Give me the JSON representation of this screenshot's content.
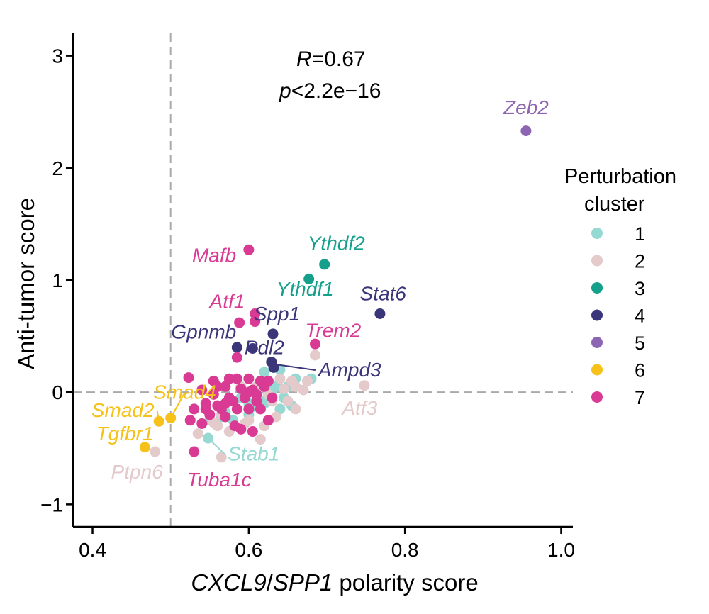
{
  "chart_data": {
    "type": "scatter",
    "title": "",
    "xlabel_parts": [
      {
        "text": "CXCL9",
        "italic": true
      },
      {
        "text": "/",
        "italic": false
      },
      {
        "text": "SPP1",
        "italic": true
      },
      {
        "text": " polarity score",
        "italic": false
      }
    ],
    "ylabel": "Anti-tumor score",
    "xlim": [
      0.375,
      1.015
    ],
    "ylim": [
      -1.2,
      3.2
    ],
    "xticks": [
      0.4,
      0.6,
      0.8,
      1.0
    ],
    "xtick_labels": [
      "0.4",
      "0.6",
      "0.8",
      "1.0"
    ],
    "yticks": [
      -1,
      0,
      1,
      2,
      3
    ],
    "ytick_labels": [
      "−1",
      "0",
      "1",
      "2",
      "3"
    ],
    "reference_lines": {
      "vertical_x": 0.5,
      "horizontal_y": 0
    },
    "stats": {
      "r_symbol": "R",
      "r_value": "=0.67",
      "p_symbol": "p",
      "p_value": "<2.2e−16"
    },
    "legend": {
      "title_line1": "Perturbation",
      "title_line2": "cluster",
      "position": "right"
    },
    "series": [
      {
        "name": "1",
        "color": "#96D8D2",
        "points": [
          [
            0.62,
            0.18
          ],
          [
            0.64,
            0.2
          ],
          [
            0.66,
            0.12
          ],
          [
            0.68,
            0.12
          ],
          [
            0.65,
            0.05
          ],
          [
            0.63,
            0.02
          ],
          [
            0.61,
            -0.02
          ],
          [
            0.62,
            -0.1
          ],
          [
            0.64,
            -0.15
          ],
          [
            0.6,
            -0.2
          ],
          [
            0.58,
            -0.25
          ],
          [
            0.655,
            -0.12
          ],
          [
            0.635,
            0.05
          ],
          [
            0.645,
            -0.05
          ],
          [
            0.59,
            -0.05
          ],
          [
            0.57,
            -0.18
          ],
          [
            0.55,
            -0.25
          ],
          [
            0.548,
            -0.41
          ],
          [
            0.6,
            -0.1
          ],
          [
            0.625,
            -0.04
          ],
          [
            0.615,
            -0.08
          ],
          [
            0.605,
            -0.13
          ],
          [
            0.565,
            -0.22
          ]
        ]
      },
      {
        "name": "2",
        "color": "#E4CACB",
        "points": [
          [
            0.685,
            0.33
          ],
          [
            0.62,
            0.1
          ],
          [
            0.64,
            0.12
          ],
          [
            0.66,
            0.05
          ],
          [
            0.67,
            0.02
          ],
          [
            0.625,
            -0.02
          ],
          [
            0.61,
            0.05
          ],
          [
            0.63,
            -0.08
          ],
          [
            0.65,
            -0.08
          ],
          [
            0.66,
            -0.15
          ],
          [
            0.6,
            -0.25
          ],
          [
            0.62,
            -0.3
          ],
          [
            0.575,
            -0.35
          ],
          [
            0.565,
            -0.2
          ],
          [
            0.555,
            -0.27
          ],
          [
            0.535,
            -0.37
          ],
          [
            0.595,
            -0.28
          ],
          [
            0.615,
            -0.42
          ],
          [
            0.565,
            -0.58
          ],
          [
            0.48,
            -0.53
          ],
          [
            0.748,
            0.06
          ],
          [
            0.655,
            0.1
          ],
          [
            0.56,
            -0.3
          ],
          [
            0.585,
            -0.15
          ],
          [
            0.635,
            -0.22
          ],
          [
            0.59,
            0.05
          ],
          [
            0.675,
            0.1
          ],
          [
            0.645,
            0.03
          ]
        ]
      },
      {
        "name": "3",
        "color": "#15A08C",
        "points": [
          [
            0.697,
            1.14
          ],
          [
            0.677,
            1.01
          ]
        ]
      },
      {
        "name": "4",
        "color": "#3A3679",
        "points": [
          [
            0.768,
            0.7
          ],
          [
            0.631,
            0.52
          ],
          [
            0.585,
            0.4
          ],
          [
            0.605,
            0.39
          ],
          [
            0.629,
            0.27
          ],
          [
            0.632,
            0.22
          ]
        ]
      },
      {
        "name": "5",
        "color": "#8C66B3",
        "points": [
          [
            0.955,
            2.33
          ]
        ]
      },
      {
        "name": "6",
        "color": "#F6C21A",
        "points": [
          [
            0.5,
            -0.23
          ],
          [
            0.485,
            -0.26
          ],
          [
            0.467,
            -0.49
          ]
        ]
      },
      {
        "name": "7",
        "color": "#D93A93",
        "points": [
          [
            0.6,
            1.27
          ],
          [
            0.608,
            0.7
          ],
          [
            0.608,
            0.63
          ],
          [
            0.588,
            0.62
          ],
          [
            0.685,
            0.43
          ],
          [
            0.585,
            0.31
          ],
          [
            0.523,
            0.13
          ],
          [
            0.555,
            0.1
          ],
          [
            0.575,
            0.12
          ],
          [
            0.585,
            0.12
          ],
          [
            0.6,
            0.12
          ],
          [
            0.615,
            0.1
          ],
          [
            0.57,
            0.05
          ],
          [
            0.59,
            0.03
          ],
          [
            0.605,
            0.02
          ],
          [
            0.62,
            0.05
          ],
          [
            0.54,
            0.02
          ],
          [
            0.555,
            -0.02
          ],
          [
            0.575,
            -0.05
          ],
          [
            0.595,
            -0.05
          ],
          [
            0.61,
            -0.08
          ],
          [
            0.63,
            -0.05
          ],
          [
            0.56,
            -0.12
          ],
          [
            0.545,
            -0.1
          ],
          [
            0.53,
            -0.15
          ],
          [
            0.565,
            -0.15
          ],
          [
            0.585,
            -0.15
          ],
          [
            0.6,
            -0.15
          ],
          [
            0.615,
            -0.15
          ],
          [
            0.525,
            -0.25
          ],
          [
            0.54,
            -0.28
          ],
          [
            0.55,
            -0.2
          ],
          [
            0.57,
            -0.1
          ],
          [
            0.59,
            -0.33
          ],
          [
            0.605,
            -0.35
          ],
          [
            0.625,
            -0.25
          ],
          [
            0.582,
            -0.3
          ],
          [
            0.53,
            -0.53
          ],
          [
            0.56,
            0.05
          ],
          [
            0.6,
            0.0
          ],
          [
            0.61,
            -0.02
          ],
          [
            0.545,
            -0.15
          ],
          [
            0.57,
            -0.22
          ],
          [
            0.625,
            0.1
          ],
          [
            0.58,
            -0.08
          ]
        ]
      }
    ],
    "labels": [
      {
        "text": "Zeb2",
        "series": "5",
        "anchor": "middle",
        "lx": 0.955,
        "ly": 2.48
      },
      {
        "text": "Ythdf2",
        "series": "3",
        "anchor": "middle",
        "lx": 0.712,
        "ly": 1.27
      },
      {
        "text": "Mafb",
        "series": "7",
        "anchor": "end",
        "lx": 0.584,
        "ly": 1.16
      },
      {
        "text": "Ythdf1",
        "series": "3",
        "anchor": "middle",
        "lx": 0.672,
        "ly": 0.86
      },
      {
        "text": "Stat6",
        "series": "4",
        "anchor": "middle",
        "lx": 0.772,
        "ly": 0.82
      },
      {
        "text": "Atf1",
        "series": "7",
        "anchor": "end",
        "lx": 0.595,
        "ly": 0.75
      },
      {
        "text": "Spp1",
        "series": "4",
        "anchor": "middle",
        "lx": 0.636,
        "ly": 0.64
      },
      {
        "text": "Trem2",
        "series": "7",
        "anchor": "middle",
        "lx": 0.708,
        "ly": 0.49
      },
      {
        "text": "Gpnmb",
        "series": "4",
        "anchor": "end",
        "lx": 0.584,
        "ly": 0.48
      },
      {
        "text": "Pdl2",
        "series": "4",
        "anchor": "middle",
        "lx": 0.62,
        "ly": 0.34
      },
      {
        "text": "Ampd3",
        "series": "4",
        "anchor": "start",
        "lx": 0.689,
        "ly": 0.14,
        "italic": false,
        "line_to": [
          0.632,
          0.25
        ]
      },
      {
        "text": "Smad4",
        "series": "6",
        "anchor": "middle",
        "lx": 0.518,
        "ly": -0.06,
        "line_to": [
          0.5,
          -0.23
        ]
      },
      {
        "text": "Atf3",
        "series": "2",
        "anchor": "middle",
        "lx": 0.742,
        "ly": -0.2
      },
      {
        "text": "Smad2",
        "series": "6",
        "anchor": "end",
        "lx": 0.479,
        "ly": -0.22,
        "line_to": [
          0.485,
          -0.26
        ]
      },
      {
        "text": "Tgfbr1",
        "series": "6",
        "anchor": "end",
        "lx": 0.478,
        "ly": -0.43
      },
      {
        "text": "Stab1",
        "series": "1",
        "anchor": "start",
        "lx": 0.573,
        "ly": -0.61,
        "line_to": [
          0.548,
          -0.41
        ]
      },
      {
        "text": "Ptpn6",
        "series": "2",
        "anchor": "end",
        "lx": 0.49,
        "ly": -0.77
      },
      {
        "text": "Tuba1c",
        "series": "7",
        "anchor": "middle",
        "lx": 0.562,
        "ly": -0.84
      }
    ]
  }
}
